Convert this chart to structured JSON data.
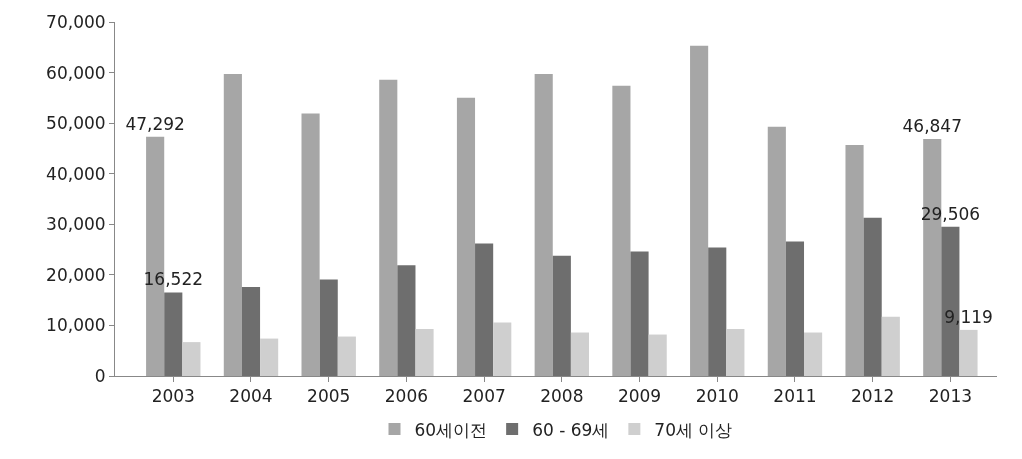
{
  "chart_data": {
    "type": "bar",
    "categories": [
      "2003",
      "2004",
      "2005",
      "2006",
      "2007",
      "2008",
      "2009",
      "2010",
      "2011",
      "2012",
      "2013"
    ],
    "series": [
      {
        "name": "60세이전",
        "color": "#a6a6a6",
        "values": [
          47292,
          59700,
          51900,
          58600,
          55000,
          59700,
          57400,
          65300,
          49300,
          45700,
          46847
        ],
        "value_labels": [
          "47,292",
          null,
          null,
          null,
          null,
          null,
          null,
          null,
          null,
          null,
          "46,847"
        ]
      },
      {
        "name": "60 - 69세",
        "color": "#6e6e6e",
        "values": [
          16522,
          17600,
          19100,
          21900,
          26200,
          23800,
          24600,
          25400,
          26600,
          31300,
          29506
        ],
        "value_labels": [
          "16,522",
          null,
          null,
          null,
          null,
          null,
          null,
          null,
          null,
          null,
          "29,506"
        ]
      },
      {
        "name": "70세 이상",
        "color": "#cfcfcf",
        "values": [
          6700,
          7400,
          7800,
          9300,
          10600,
          8600,
          8200,
          9300,
          8600,
          11700,
          9119
        ],
        "value_labels": [
          null,
          null,
          null,
          null,
          null,
          null,
          null,
          null,
          null,
          null,
          "9,119"
        ]
      }
    ],
    "ylim": [
      0,
      70000
    ],
    "yticks": [
      0,
      {
        "value": 10000,
        "label": "10,000"
      },
      {
        "value": 20000,
        "label": "20,000"
      },
      {
        "value": 30000,
        "label": "30,000"
      },
      {
        "value": 40000,
        "label": "40,000"
      },
      {
        "value": 50000,
        "label": "50,000"
      },
      {
        "value": 60000,
        "label": "60,000"
      },
      {
        "value": 70000,
        "label": "70,000"
      }
    ],
    "legend": "bottom"
  }
}
